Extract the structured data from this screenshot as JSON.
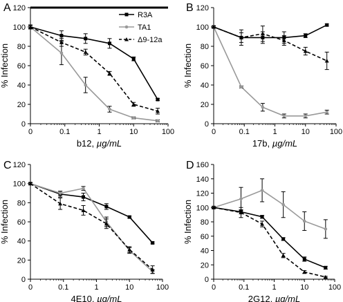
{
  "chart_data": [
    {
      "panel_label": "A",
      "type": "line",
      "xlabel_prefix": "b12, ",
      "xlabel_unit": "µg/mL",
      "ylabel": "% Infection",
      "ylim": [
        0,
        120
      ],
      "yticks": [
        "0",
        "20",
        "40",
        "60",
        "80",
        "100",
        "120"
      ],
      "xticks": [
        "0",
        "0.1",
        "1",
        "10",
        "100"
      ],
      "x_scale": "log",
      "legend_position": "top-right",
      "series": [
        {
          "name": "R3A",
          "color": "#000000",
          "dash": "solid",
          "marker": "square",
          "x": [
            0,
            0.08,
            0.4,
            2,
            10,
            50
          ],
          "y": [
            100,
            91,
            88,
            83,
            67,
            25
          ],
          "err": [
            2,
            5,
            5,
            5,
            2,
            1
          ]
        },
        {
          "name": "TA1",
          "color": "#999999",
          "dash": "solid",
          "marker": "circle",
          "x": [
            0,
            0.08,
            0.4,
            2,
            10,
            50
          ],
          "y": [
            100,
            73,
            40,
            15,
            6,
            3
          ],
          "err": [
            2,
            12,
            8,
            3,
            1,
            1
          ]
        },
        {
          "name": "Δ9-12a",
          "color": "#000000",
          "dash": "dashed",
          "marker": "triangle",
          "x": [
            0,
            0.08,
            0.4,
            2,
            10,
            50
          ],
          "y": [
            100,
            84,
            74,
            52,
            20,
            13
          ],
          "err": [
            2,
            4,
            3,
            2,
            2,
            3
          ]
        }
      ]
    },
    {
      "panel_label": "B",
      "type": "line",
      "xlabel_prefix": "17b, ",
      "xlabel_unit": "µg/mL",
      "ylabel": "% Infection",
      "ylim": [
        0,
        120
      ],
      "yticks": [
        "0",
        "20",
        "40",
        "60",
        "80",
        "100",
        "120"
      ],
      "xticks": [
        "0",
        "0.1",
        "1",
        "10",
        "100"
      ],
      "x_scale": "log",
      "series": [
        {
          "name": "R3A",
          "color": "#000000",
          "dash": "solid",
          "marker": "square",
          "x": [
            0,
            0.08,
            0.4,
            2,
            10,
            50
          ],
          "y": [
            100,
            89,
            89,
            89,
            91,
            102
          ],
          "err": [
            1,
            5,
            6,
            6,
            2,
            1
          ]
        },
        {
          "name": "TA1",
          "color": "#999999",
          "dash": "solid",
          "marker": "circle",
          "x": [
            0,
            0.08,
            0.4,
            2,
            10,
            50
          ],
          "y": [
            100,
            38,
            17,
            8,
            8,
            12
          ],
          "err": [
            1,
            1,
            4,
            2,
            2,
            2
          ]
        },
        {
          "name": "Δ9-12a",
          "color": "#000000",
          "dash": "dashed",
          "marker": "triangle",
          "x": [
            0,
            0.08,
            0.4,
            2,
            10,
            50
          ],
          "y": [
            100,
            89,
            93,
            86,
            75,
            65
          ],
          "err": [
            1,
            8,
            8,
            5,
            4,
            9
          ]
        }
      ]
    },
    {
      "panel_label": "C",
      "type": "line",
      "xlabel_prefix": "4E10, ",
      "xlabel_unit": "µg/mL",
      "ylabel": "% Infection",
      "ylim": [
        0,
        120
      ],
      "yticks": [
        "0",
        "20",
        "40",
        "60",
        "80",
        "100",
        "120"
      ],
      "xticks": [
        "0",
        "0.1",
        "1",
        "10",
        "100"
      ],
      "x_scale": "log",
      "series": [
        {
          "name": "R3A",
          "color": "#000000",
          "dash": "solid",
          "marker": "square",
          "x": [
            0,
            0.08,
            0.4,
            2,
            10,
            50
          ],
          "y": [
            100,
            89,
            86,
            76,
            65,
            38
          ],
          "err": [
            1,
            3,
            4,
            3,
            1,
            1
          ]
        },
        {
          "name": "TA1",
          "color": "#999999",
          "dash": "solid",
          "marker": "circle",
          "x": [
            0,
            0.08,
            0.4,
            2,
            10,
            50
          ],
          "y": [
            100,
            90,
            95,
            60,
            30,
            8
          ],
          "err": [
            1,
            2,
            2,
            5,
            3,
            2
          ]
        },
        {
          "name": "Δ9-12a",
          "color": "#000000",
          "dash": "dashed",
          "marker": "triangle",
          "x": [
            0,
            0.08,
            0.4,
            2,
            10,
            50
          ],
          "y": [
            100,
            79,
            72,
            58,
            31,
            10
          ],
          "err": [
            1,
            6,
            5,
            5,
            3,
            4
          ]
        }
      ]
    },
    {
      "panel_label": "D",
      "type": "line",
      "xlabel_prefix": "2G12, ",
      "xlabel_unit": "µg/mL",
      "ylabel": "% Infection",
      "ylim": [
        0,
        160
      ],
      "yticks": [
        "0",
        "20",
        "40",
        "60",
        "80",
        "100",
        "120",
        "140",
        "160"
      ],
      "xticks": [
        "0",
        "0.1",
        "1",
        "10",
        "100"
      ],
      "x_scale": "log",
      "series": [
        {
          "name": "R3A",
          "color": "#000000",
          "dash": "solid",
          "marker": "square",
          "x": [
            0,
            0.08,
            0.4,
            2,
            10,
            50
          ],
          "y": [
            100,
            94,
            87,
            56,
            28,
            16
          ],
          "err": [
            1,
            3,
            2,
            2,
            3,
            2
          ]
        },
        {
          "name": "TA1",
          "color": "#999999",
          "dash": "solid",
          "marker": "circle",
          "x": [
            0,
            0.08,
            0.4,
            2,
            10,
            50
          ],
          "y": [
            100,
            112,
            124,
            104,
            81,
            70
          ],
          "err": [
            1,
            16,
            16,
            18,
            13,
            13
          ]
        },
        {
          "name": "Δ9-12a",
          "color": "#000000",
          "dash": "dashed",
          "marker": "triangle",
          "x": [
            0,
            0.08,
            0.4,
            2,
            10,
            50
          ],
          "y": [
            100,
            93,
            77,
            33,
            10,
            3
          ],
          "err": [
            1,
            7,
            4,
            3,
            2,
            1
          ]
        }
      ]
    }
  ]
}
